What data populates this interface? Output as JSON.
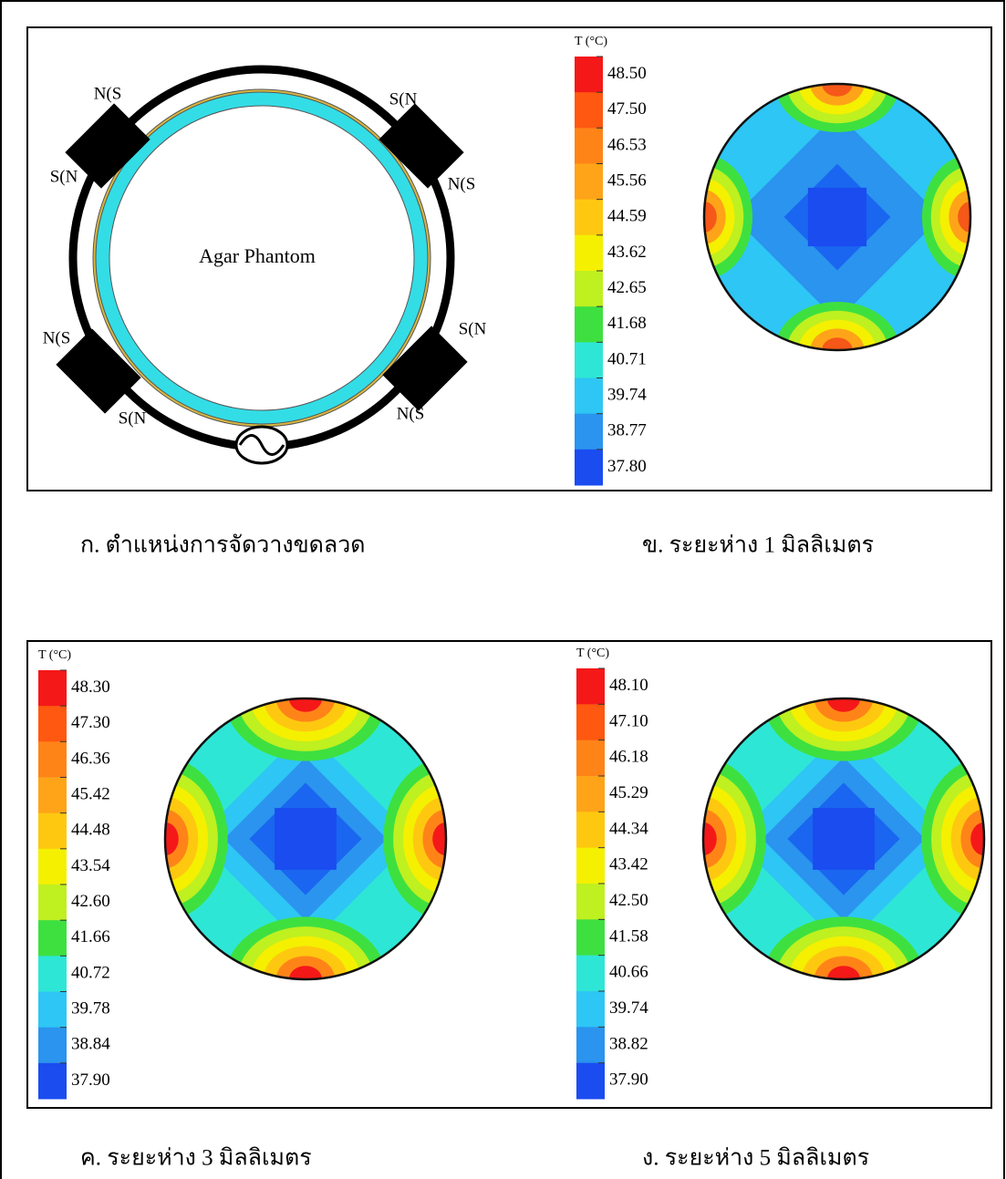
{
  "diagram": {
    "center_label": "Agar Phantom",
    "magnet_labels": [
      "N(S",
      "S(N",
      "S(N",
      "N(S",
      "N(S",
      "S(N",
      "S(N",
      "N(S"
    ]
  },
  "panels": [
    {
      "colorbar_title": "T (°C)",
      "levels": [
        "48.50",
        "47.50",
        "46.53",
        "45.56",
        "44.59",
        "43.62",
        "42.65",
        "41.68",
        "40.71",
        "39.74",
        "38.77",
        "37.80"
      ]
    },
    {
      "colorbar_title": "T (°C)",
      "levels": [
        "48.30",
        "47.30",
        "46.36",
        "45.42",
        "44.48",
        "43.54",
        "42.60",
        "41.66",
        "40.72",
        "39.78",
        "38.84",
        "37.90"
      ]
    },
    {
      "colorbar_title": "T (°C)",
      "levels": [
        "48.10",
        "47.10",
        "46.18",
        "45.29",
        "44.34",
        "43.42",
        "42.50",
        "41.58",
        "40.66",
        "39.74",
        "38.82",
        "37.90"
      ]
    }
  ],
  "captions": [
    "ก. ตำแหน่งการจัดวางขดลวด",
    "ข. ระยะห่าง 1 มิลลิเมตร",
    "ค. ระยะห่าง 3 มิลลิเมตร",
    "ง. ระยะห่าง 5 มิลลิเมตร"
  ]
}
